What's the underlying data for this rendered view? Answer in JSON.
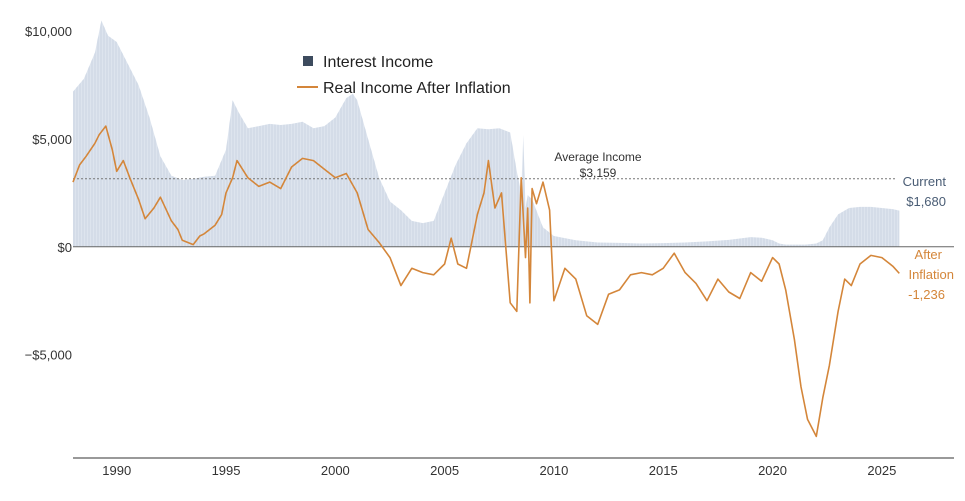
{
  "chart_data": {
    "type": "area",
    "title": "",
    "xlabel": "",
    "ylabel": "",
    "xlim": [
      1988.0,
      2028.3
    ],
    "ylim": [
      -9800,
      10800
    ],
    "x_ticks": [
      1990,
      1995,
      2000,
      2005,
      2010,
      2015,
      2020,
      2025
    ],
    "x_tick_labels": [
      "1990",
      "1995",
      "2000",
      "2005",
      "2010",
      "2015",
      "2020",
      "2025"
    ],
    "y_ticks": [
      10000,
      5000,
      0,
      -5000
    ],
    "y_tick_labels": [
      "$10,000",
      "$5,000",
      "$0",
      "−$5,000"
    ],
    "colors": {
      "interest_fill": "#dde4ee",
      "interest_stroke": "#c5d1e1",
      "legend_square": "#3d4b5e",
      "real_line": "#d4863a",
      "zero_line": "#666666",
      "avg_line": "#777777",
      "current_text": "#4a5d75",
      "after_text": "#d4863a"
    },
    "legend": {
      "interest_label": "Interest Income",
      "real_label": "Real Income After Inflation"
    },
    "series": [
      {
        "name": "Interest Income",
        "style": "area",
        "x": [
          1988.0,
          1988.5,
          1989.0,
          1989.3,
          1989.6,
          1990.0,
          1990.5,
          1991.0,
          1991.5,
          1992.0,
          1992.5,
          1993.0,
          1993.5,
          1994.0,
          1994.5,
          1995.0,
          1995.3,
          1995.6,
          1996.0,
          1996.5,
          1997.0,
          1997.5,
          1998.0,
          1998.5,
          1999.0,
          1999.5,
          2000.0,
          2000.5,
          2000.8,
          2001.0,
          2001.5,
          2002.0,
          2002.5,
          2003.0,
          2003.5,
          2004.0,
          2004.5,
          2005.0,
          2005.5,
          2006.0,
          2006.5,
          2007.0,
          2007.5,
          2008.0,
          2008.3,
          2008.5,
          2008.6,
          2008.7,
          2008.8,
          2009.0,
          2009.5,
          2010.0,
          2011.0,
          2012.0,
          2013.0,
          2014.0,
          2015.0,
          2016.0,
          2017.0,
          2018.0,
          2019.0,
          2019.5,
          2020.0,
          2020.3,
          2020.6,
          2021.0,
          2021.5,
          2022.0,
          2022.3,
          2022.6,
          2023.0,
          2023.5,
          2024.0,
          2024.5,
          2025.0,
          2025.5,
          2025.8
        ],
        "values": [
          7200,
          7800,
          9000,
          10500,
          9800,
          9500,
          8500,
          7500,
          6000,
          4200,
          3300,
          3100,
          3150,
          3250,
          3300,
          4500,
          6800,
          6200,
          5500,
          5600,
          5700,
          5650,
          5700,
          5800,
          5500,
          5600,
          6000,
          6900,
          7100,
          6800,
          5000,
          3200,
          2100,
          1700,
          1200,
          1100,
          1200,
          2500,
          3800,
          4800,
          5500,
          5450,
          5500,
          5300,
          3500,
          2500,
          5200,
          1800,
          2400,
          2200,
          900,
          500,
          300,
          200,
          180,
          150,
          170,
          200,
          250,
          320,
          450,
          420,
          300,
          150,
          100,
          100,
          100,
          150,
          300,
          900,
          1500,
          1800,
          1850,
          1850,
          1800,
          1750,
          1680
        ]
      },
      {
        "name": "Real Income After Inflation",
        "style": "line",
        "x": [
          1988.0,
          1988.3,
          1988.6,
          1989.0,
          1989.2,
          1989.5,
          1989.8,
          1990.0,
          1990.3,
          1990.6,
          1991.0,
          1991.3,
          1991.7,
          1992.0,
          1992.5,
          1992.8,
          1993.0,
          1993.5,
          1993.8,
          1994.0,
          1994.5,
          1994.8,
          1995.0,
          1995.3,
          1995.5,
          1996.0,
          1996.5,
          1997.0,
          1997.5,
          1998.0,
          1998.5,
          1999.0,
          1999.5,
          2000.0,
          2000.5,
          2001.0,
          2001.5,
          2002.0,
          2002.5,
          2003.0,
          2003.5,
          2004.0,
          2004.5,
          2005.0,
          2005.3,
          2005.6,
          2006.0,
          2006.5,
          2006.8,
          2007.0,
          2007.3,
          2007.6,
          2008.0,
          2008.3,
          2008.5,
          2008.7,
          2008.8,
          2008.9,
          2009.0,
          2009.2,
          2009.5,
          2009.8,
          2010.0,
          2010.5,
          2011.0,
          2011.5,
          2012.0,
          2012.5,
          2013.0,
          2013.5,
          2014.0,
          2014.5,
          2015.0,
          2015.5,
          2016.0,
          2016.5,
          2017.0,
          2017.5,
          2018.0,
          2018.5,
          2019.0,
          2019.5,
          2020.0,
          2020.3,
          2020.6,
          2021.0,
          2021.3,
          2021.6,
          2022.0,
          2022.3,
          2022.6,
          2023.0,
          2023.3,
          2023.6,
          2024.0,
          2024.5,
          2025.0,
          2025.5,
          2025.8
        ],
        "values": [
          3000,
          3800,
          4200,
          4800,
          5200,
          5600,
          4500,
          3500,
          4000,
          3200,
          2200,
          1300,
          1800,
          2300,
          1200,
          800,
          300,
          100,
          500,
          600,
          1000,
          1500,
          2500,
          3200,
          4000,
          3200,
          2800,
          3000,
          2700,
          3700,
          4100,
          4000,
          3600,
          3200,
          3400,
          2500,
          800,
          200,
          -500,
          -1800,
          -1000,
          -1200,
          -1300,
          -800,
          400,
          -800,
          -1000,
          1500,
          2500,
          4000,
          1800,
          2500,
          -2600,
          -3000,
          3200,
          -500,
          1800,
          -2600,
          2700,
          2000,
          3000,
          1700,
          -2500,
          -1000,
          -1500,
          -3200,
          -3600,
          -2200,
          -2000,
          -1300,
          -1200,
          -1300,
          -1000,
          -300,
          -1200,
          -1700,
          -2500,
          -1500,
          -2100,
          -2400,
          -1200,
          -1600,
          -500,
          -800,
          -2000,
          -4300,
          -6500,
          -8000,
          -8800,
          -7000,
          -5500,
          -3000,
          -1500,
          -1800,
          -800,
          -400,
          -500,
          -900,
          -1236
        ]
      }
    ],
    "average": {
      "value": 3159,
      "label_title": "Average Income",
      "label_value": "$3,159"
    },
    "current": {
      "value": 1680,
      "label_title": "Current",
      "label_value": "$1,680"
    },
    "after_inflation": {
      "value": -1236,
      "label_line1": "After",
      "label_line2": "Inflation",
      "label_value": "-1,236"
    }
  }
}
